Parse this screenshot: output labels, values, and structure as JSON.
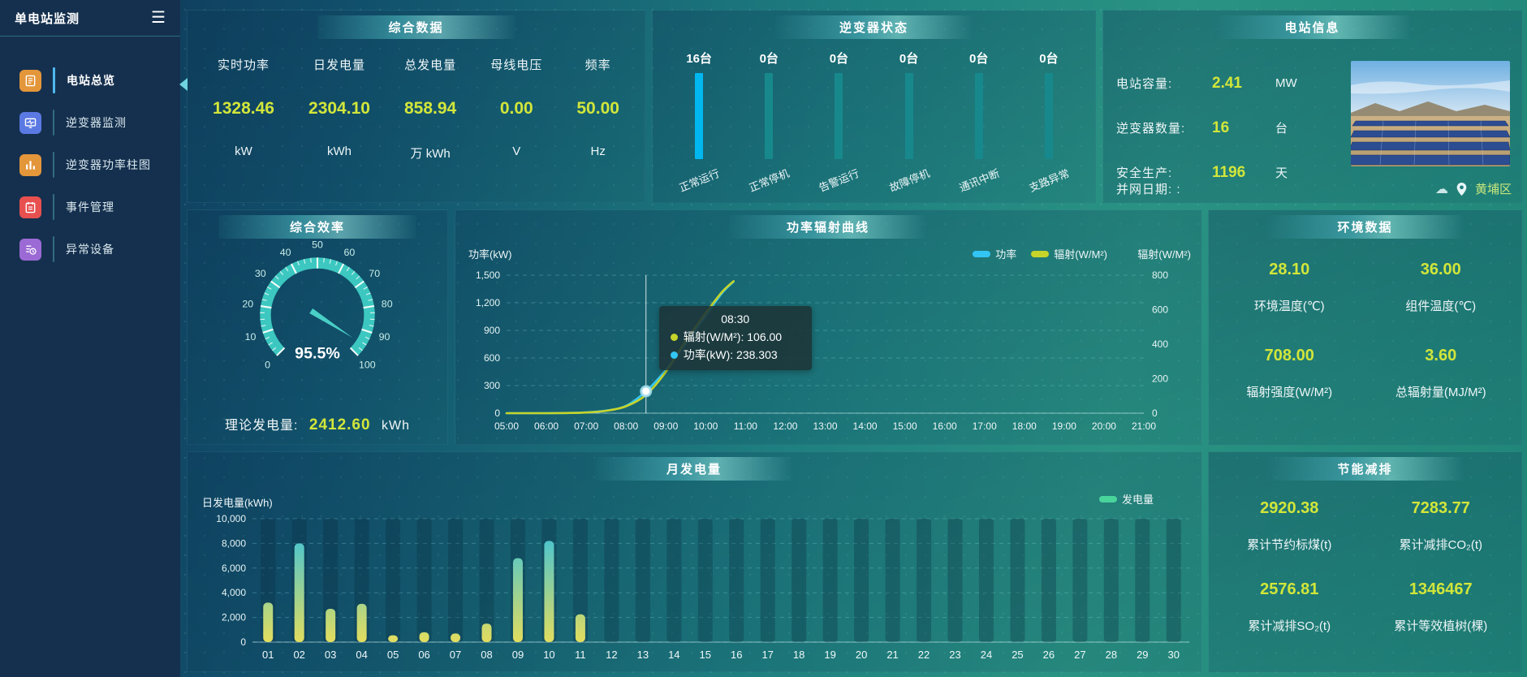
{
  "sidebar": {
    "title": "单电站监测",
    "menu": [
      {
        "label": "电站总览",
        "icon": "station-overview-icon",
        "color": "#e3963a",
        "active": true
      },
      {
        "label": "逆变器监测",
        "icon": "inverter-monitor-icon",
        "color": "#5b79e3",
        "active": false
      },
      {
        "label": "逆变器功率柱图",
        "icon": "inverter-power-bars-icon",
        "color": "#e3963a",
        "active": false
      },
      {
        "label": "事件管理",
        "icon": "event-management-icon",
        "color": "#e85050",
        "active": false
      },
      {
        "label": "异常设备",
        "icon": "abnormal-device-icon",
        "color": "#9b6ad4",
        "active": false
      }
    ]
  },
  "summary": {
    "title": "综合数据",
    "stats": [
      {
        "label": "实时功率",
        "value": "1328.46",
        "unit": "kW"
      },
      {
        "label": "日发电量",
        "value": "2304.10",
        "unit": "kWh"
      },
      {
        "label": "总发电量",
        "value": "858.94",
        "unit": "万 kWh"
      },
      {
        "label": "母线电压",
        "value": "0.00",
        "unit": "V"
      },
      {
        "label": "频率",
        "value": "50.00",
        "unit": "Hz"
      }
    ]
  },
  "inverter_status": {
    "title": "逆变器状态",
    "items": [
      {
        "count": "16台",
        "label": "正常运行",
        "color": "#00b7f0"
      },
      {
        "count": "0台",
        "label": "正常停机",
        "color": "#17898d"
      },
      {
        "count": "0台",
        "label": "告警运行",
        "color": "#17898d"
      },
      {
        "count": "0台",
        "label": "故障停机",
        "color": "#17898d"
      },
      {
        "count": "0台",
        "label": "通讯中断",
        "color": "#17898d"
      },
      {
        "count": "0台",
        "label": "支路异常",
        "color": "#17898d"
      }
    ]
  },
  "station_info": {
    "title": "电站信息",
    "rows": [
      {
        "label": "电站容量:",
        "value": "2.41",
        "unit": "MW"
      },
      {
        "label": "逆变器数量:",
        "value": "16",
        "unit": "台"
      },
      {
        "label": "安全生产:",
        "value": "1196",
        "unit": "天"
      }
    ],
    "grid_date_label": "并网日期:  :",
    "location": "黄埔区"
  },
  "environment": {
    "title": "环境数据",
    "stats": [
      {
        "value": "28.10",
        "label": "环境温度(℃)"
      },
      {
        "value": "36.00",
        "label": "组件温度(℃)"
      },
      {
        "value": "708.00",
        "label": "辐射强度(W/M²)"
      },
      {
        "value": "3.60",
        "label": "总辐射量(MJ/M²)"
      }
    ]
  },
  "energy_saving": {
    "title": "节能减排",
    "stats": [
      {
        "value": "2920.38",
        "label": "累计节约标煤(t)"
      },
      {
        "value": "7283.77",
        "label": "累计减排CO₂(t)"
      },
      {
        "value": "2576.81",
        "label": "累计减排SO₂(t)"
      },
      {
        "value": "1346467",
        "label": "累计等效植树(棵)"
      }
    ]
  },
  "colors": {
    "value_green": "#d2e63a",
    "power_line": "#33c5f3",
    "radiation_line": "#c6d42a",
    "gauge": "#3cc8c0",
    "bar_gradient_top": "#2fc0e4",
    "bar_gradient_bottom": "#e2dd5e",
    "gen_legend": "#49d49c",
    "grid_line": "rgba(120,205,215,0.35)"
  },
  "chart_data": [
    {
      "id": "efficiency_gauge",
      "type": "gauge",
      "title": "综合效率",
      "min": 0,
      "max": 100,
      "tick_labels": [
        0,
        10,
        20,
        30,
        40,
        50,
        60,
        70,
        80,
        90,
        100
      ],
      "value": 95.5,
      "value_label": "95.5%",
      "footer": {
        "label": "理论发电量:",
        "value": "2412.60",
        "unit": "kWh"
      }
    },
    {
      "id": "power_radiation_curve",
      "type": "line",
      "title": "功率辐射曲线",
      "x_ticks": [
        "05:00",
        "06:00",
        "07:00",
        "08:00",
        "09:00",
        "10:00",
        "11:00",
        "12:00",
        "13:00",
        "14:00",
        "15:00",
        "16:00",
        "17:00",
        "18:00",
        "19:00",
        "20:00",
        "21:00"
      ],
      "x_range": [
        5,
        21
      ],
      "y_left": {
        "label": "功率(kW)",
        "ticks": [
          0,
          300,
          600,
          900,
          1200,
          1500
        ],
        "max": 1500
      },
      "y_right": {
        "label": "辐射(W/M²)",
        "ticks": [
          0,
          200,
          400,
          600,
          800
        ],
        "max": 800
      },
      "series": [
        {
          "name": "功率",
          "axis": "left",
          "points": [
            [
              5,
              0
            ],
            [
              5.5,
              0
            ],
            [
              6,
              0
            ],
            [
              6.5,
              2
            ],
            [
              7,
              8
            ],
            [
              7.5,
              28
            ],
            [
              8,
              80
            ],
            [
              8.5,
              238.303
            ],
            [
              9,
              470
            ],
            [
              9.5,
              760
            ],
            [
              10,
              1060
            ],
            [
              10.4,
              1300
            ],
            [
              10.7,
              1430
            ]
          ]
        },
        {
          "name": "辐射(W/M²)",
          "axis": "right",
          "points": [
            [
              5,
              0
            ],
            [
              5.5,
              0
            ],
            [
              6,
              0
            ],
            [
              6.5,
              1
            ],
            [
              7,
              4
            ],
            [
              7.5,
              14
            ],
            [
              8,
              40
            ],
            [
              8.5,
              106
            ],
            [
              9,
              240
            ],
            [
              9.5,
              420
            ],
            [
              10,
              580
            ],
            [
              10.4,
              700
            ],
            [
              10.7,
              765
            ]
          ]
        }
      ],
      "tooltip": {
        "time": "08:30",
        "x": 8.5,
        "marker_value": 238.303,
        "rows": [
          {
            "label": "辐射(W/M²)",
            "value": "106.00"
          },
          {
            "label": "功率(kW)",
            "value": "238.303"
          }
        ]
      },
      "legend": [
        "功率",
        "辐射(W/M²)"
      ]
    },
    {
      "id": "monthly_generation",
      "type": "bar",
      "title": "月发电量",
      "ylabel": "日发电量(kWh)",
      "legend": [
        "发电量"
      ],
      "categories": [
        "01",
        "02",
        "03",
        "04",
        "05",
        "06",
        "07",
        "08",
        "09",
        "10",
        "11",
        "12",
        "13",
        "14",
        "15",
        "16",
        "17",
        "18",
        "19",
        "20",
        "21",
        "22",
        "23",
        "24",
        "25",
        "26",
        "27",
        "28",
        "29",
        "30"
      ],
      "values": [
        3200,
        8000,
        2700,
        3100,
        550,
        800,
        700,
        1500,
        6800,
        8200,
        2250,
        0,
        0,
        0,
        0,
        0,
        0,
        0,
        0,
        0,
        0,
        0,
        0,
        0,
        0,
        0,
        0,
        0,
        0,
        0
      ],
      "y_ticks": [
        0,
        2000,
        4000,
        6000,
        8000,
        10000
      ],
      "ylim": [
        0,
        10000
      ]
    }
  ]
}
